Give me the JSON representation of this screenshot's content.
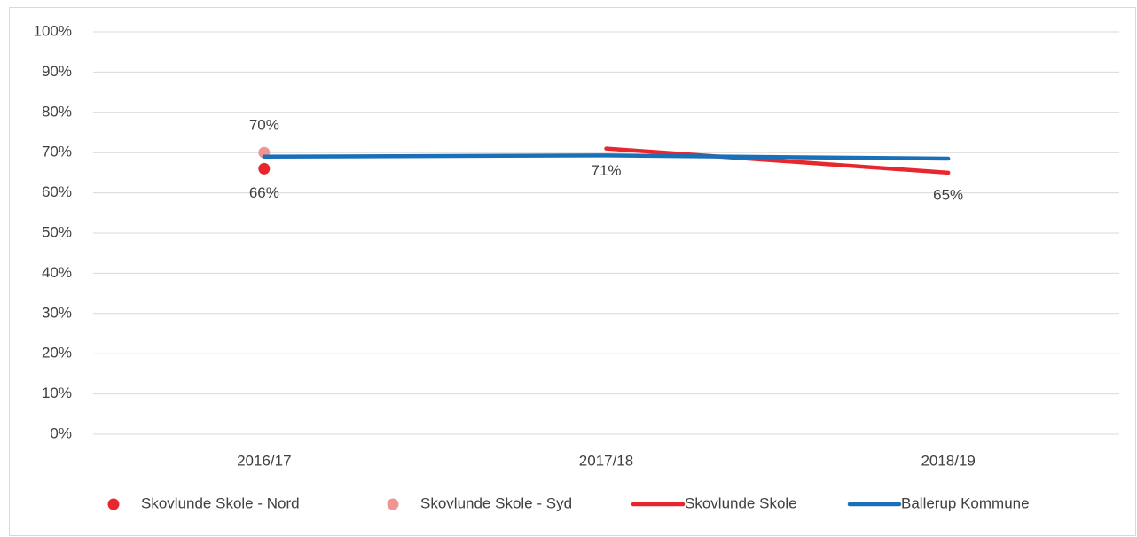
{
  "chart_data": {
    "type": "line",
    "categories": [
      "2016/17",
      "2017/18",
      "2018/19"
    ],
    "ylim": [
      0,
      100
    ],
    "yticks": [
      {
        "value": 0,
        "label": "0%"
      },
      {
        "value": 10,
        "label": "10%"
      },
      {
        "value": 20,
        "label": "20%"
      },
      {
        "value": 30,
        "label": "30%"
      },
      {
        "value": 40,
        "label": "40%"
      },
      {
        "value": 50,
        "label": "50%"
      },
      {
        "value": 60,
        "label": "60%"
      },
      {
        "value": 70,
        "label": "70%"
      },
      {
        "value": 80,
        "label": "80%"
      },
      {
        "value": 90,
        "label": "90%"
      },
      {
        "value": 100,
        "label": "100%"
      }
    ],
    "grid": true,
    "legend": "bottom",
    "series": [
      {
        "name": "Skovlunde Skole - Nord",
        "type": "scatter",
        "color": "#e8262e",
        "values": [
          66,
          null,
          null
        ],
        "value_labels": [
          "66%",
          null,
          null
        ]
      },
      {
        "name": "Skovlunde Skole - Syd",
        "type": "scatter",
        "color": "#f19494",
        "values": [
          70,
          null,
          null
        ],
        "value_labels": [
          "70%",
          null,
          null
        ]
      },
      {
        "name": "Skovlunde Skole",
        "type": "line",
        "color": "#e8262e",
        "values": [
          null,
          71,
          65
        ],
        "value_labels": [
          null,
          "71%",
          "65%"
        ]
      },
      {
        "name": "Ballerup Kommune",
        "type": "line",
        "color": "#1a70b8",
        "values": [
          69,
          69.3,
          68.5
        ]
      }
    ]
  }
}
